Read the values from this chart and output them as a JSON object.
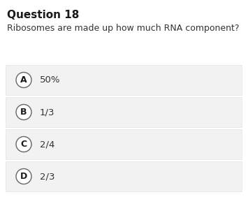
{
  "title": "Question 18",
  "question": "Ribosomes are made up how much RNA component?",
  "options": [
    {
      "label": "A",
      "text": "50%"
    },
    {
      "label": "B",
      "text": "1/3"
    },
    {
      "label": "C",
      "text": "2/4"
    },
    {
      "label": "D",
      "text": "2/3"
    }
  ],
  "bg_color": "#ffffff",
  "option_bg_color": "#f2f2f2",
  "option_border_color": "#e0e0e0",
  "title_fontsize": 11,
  "question_fontsize": 9,
  "option_fontsize": 9.5,
  "label_fontsize": 9,
  "title_color": "#1a1a1a",
  "question_color": "#333333",
  "option_text_color": "#333333",
  "circle_edge_color": "#666666",
  "circle_face_color": "#ffffff"
}
